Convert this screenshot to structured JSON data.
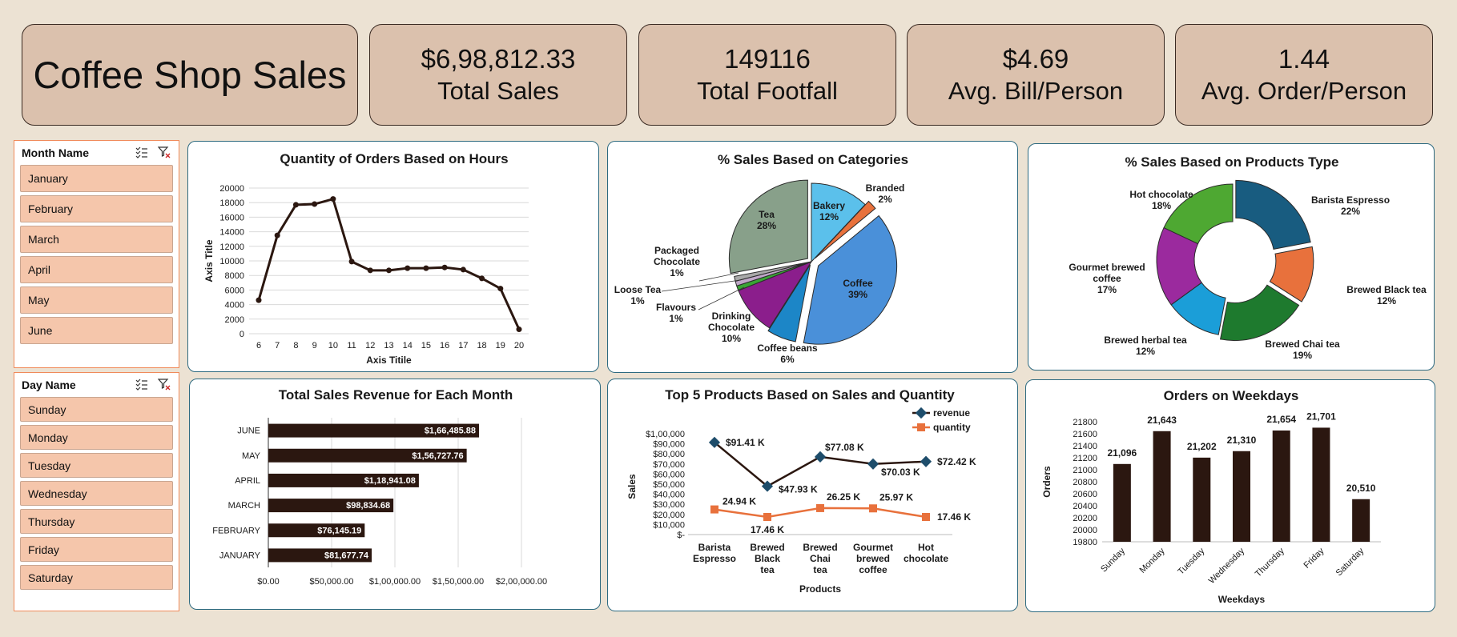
{
  "dashboard": {
    "title": "Coffee Shop Sales"
  },
  "kpis": [
    {
      "value": "$6,98,812.33",
      "label": "Total Sales"
    },
    {
      "value": "149116",
      "label": "Total Footfall"
    },
    {
      "value": "$4.69",
      "label": "Avg. Bill/Person"
    },
    {
      "value": "1.44",
      "label": "Avg. Order/Person"
    }
  ],
  "slicers": {
    "month": {
      "header": "Month Name",
      "items": [
        "January",
        "February",
        "March",
        "April",
        "May",
        "June"
      ]
    },
    "day": {
      "header": "Day Name",
      "items": [
        "Sunday",
        "Monday",
        "Tuesday",
        "Wednesday",
        "Thursday",
        "Friday",
        "Saturday"
      ]
    }
  },
  "colors": {
    "accent": "#2b1710",
    "panel_border": "#2d6a80",
    "kpi_bg": "#dbc1ad",
    "slicer_item": "#f5c6ab",
    "slicer_border": "#f08a5a"
  },
  "chart_data": [
    {
      "type": "line",
      "title": "Quantity of Orders Based on Hours",
      "xlabel": "Axis Titile",
      "ylabel": "Axis Title",
      "x": [
        6,
        7,
        8,
        9,
        10,
        11,
        12,
        13,
        14,
        15,
        16,
        17,
        18,
        19,
        20
      ],
      "values": [
        4600,
        13500,
        17700,
        17800,
        18500,
        9900,
        8700,
        8700,
        9000,
        9000,
        9100,
        8800,
        7600,
        6200,
        600
      ],
      "ylim": [
        0,
        20000
      ],
      "yticks": [
        "0",
        "2000",
        "4000",
        "6000",
        "8000",
        "10000",
        "12000",
        "14000",
        "16000",
        "18000",
        "20000"
      ],
      "grid": true
    },
    {
      "type": "pie",
      "title": "% Sales Based on Categories",
      "slices": [
        {
          "name": "Bakery",
          "pct": 12,
          "label": "12%",
          "color": "#5bc0eb"
        },
        {
          "name": "Branded",
          "pct": 2,
          "label": "2%",
          "color": "#e8713c"
        },
        {
          "name": "Coffee",
          "pct": 39,
          "label": "39%",
          "color": "#4a90d9"
        },
        {
          "name": "Coffee beans",
          "pct": 6,
          "label": "6%",
          "color": "#1c86c7"
        },
        {
          "name": "Drinking Chocolate",
          "pct": 10,
          "label": "10%",
          "color": "#8b1e8c"
        },
        {
          "name": "Flavours",
          "pct": 1,
          "label": "1%",
          "color": "#3aa535"
        },
        {
          "name": "Loose Tea",
          "pct": 1,
          "label": "1%",
          "color": "#c0a8c8"
        },
        {
          "name": "Packaged Chocolate",
          "pct": 1,
          "label": "1%",
          "color": "#a9a9a9"
        },
        {
          "name": "Tea",
          "pct": 28,
          "label": "28%",
          "color": "#88a08a"
        }
      ]
    },
    {
      "type": "doughnut",
      "title": "% Sales Based on Products Type",
      "slices": [
        {
          "name": "Barista Espresso",
          "pct": 22,
          "label": "22%",
          "color": "#185c80"
        },
        {
          "name": "Brewed Black tea",
          "pct": 12,
          "label": "12%",
          "color": "#e8713c"
        },
        {
          "name": "Brewed Chai tea",
          "pct": 19,
          "label": "19%",
          "color": "#1e7a2e"
        },
        {
          "name": "Brewed herbal tea",
          "pct": 12,
          "label": "12%",
          "color": "#1b9ed8"
        },
        {
          "name": "Gourmet brewed coffee",
          "pct": 17,
          "label": "17%",
          "color": "#9b2a9e"
        },
        {
          "name": "Hot chocolate",
          "pct": 18,
          "label": "18%",
          "color": "#4ea832"
        }
      ]
    },
    {
      "type": "bar",
      "orientation": "horizontal",
      "title": "Total Sales Revenue for Each Month",
      "categories": [
        "JUNE",
        "MAY",
        "APRIL",
        "MARCH",
        "FEBRUARY",
        "JANUARY"
      ],
      "values": [
        166485.88,
        156727.76,
        118941.08,
        98834.68,
        76145.19,
        81677.74
      ],
      "data_labels": [
        "$1,66,485.88",
        "$1,56,727.76",
        "$1,18,941.08",
        "$98,834.68",
        "$76,145.19",
        "$81,677.74"
      ],
      "xlim": [
        0,
        200000
      ],
      "xticks": [
        "$0.00",
        "$50,000.00",
        "$1,00,000.00",
        "$1,50,000.00",
        "$2,00,000.00"
      ],
      "grid": true
    },
    {
      "type": "line",
      "title": "Top 5 Products Based on Sales and Quantity",
      "xlabel": "Products",
      "ylabel": "Sales",
      "categories": [
        "Barista Espresso",
        "Brewed Black tea",
        "Brewed Chai tea",
        "Gourmet brewed coffee",
        "Hot chocolate"
      ],
      "series": [
        {
          "name": "revenue",
          "values": [
            91410,
            47930,
            77080,
            70030,
            72420
          ],
          "labels": [
            "$91.41 K",
            "$47.93 K",
            "$77.08 K",
            "$70.03 K",
            "$72.42 K"
          ],
          "color": "#1e4d6b"
        },
        {
          "name": "quantity",
          "values": [
            24940,
            17460,
            26250,
            25970,
            17460
          ],
          "labels": [
            "24.94 K",
            "17.46 K",
            "26.25 K",
            "25.97 K",
            "17.46 K"
          ],
          "color": "#e8713c"
        }
      ],
      "ylim": [
        0,
        100000
      ],
      "yticks": [
        "$-",
        "$10,000",
        "$20,000",
        "$30,000",
        "$40,000",
        "$50,000",
        "$60,000",
        "$70,000",
        "$80,000",
        "$90,000",
        "$1,00,000"
      ],
      "legend": "top-right"
    },
    {
      "type": "bar",
      "title": "Orders on Weekdays",
      "xlabel": "Weekdays",
      "ylabel": "Orders",
      "categories": [
        "Sunday",
        "Monday",
        "Tuesday",
        "Wednesday",
        "Thursday",
        "Friday",
        "Saturday"
      ],
      "values": [
        21096,
        21643,
        21202,
        21310,
        21654,
        21701,
        20510
      ],
      "data_labels": [
        "21,096",
        "21,643",
        "21,202",
        "21,310",
        "21,654",
        "21,701",
        "20,510"
      ],
      "ylim": [
        19800,
        21800
      ],
      "yticks": [
        "19800",
        "20000",
        "20200",
        "20400",
        "20600",
        "20800",
        "21000",
        "21200",
        "21400",
        "21600",
        "21800"
      ]
    }
  ]
}
